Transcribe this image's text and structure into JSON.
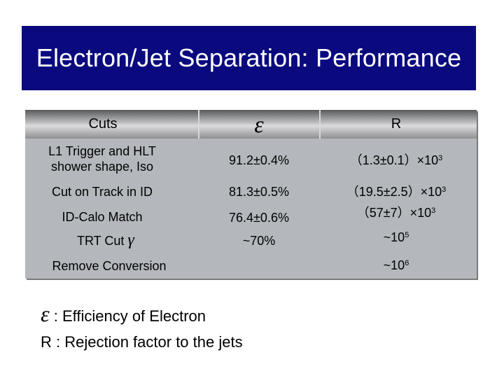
{
  "title": "Electron/Jet Separation: Performance",
  "table": {
    "headers": {
      "cuts": "Cuts",
      "efficiency_symbol": "ε",
      "rejection": "R"
    },
    "rows": [
      {
        "cut": "L1 Trigger and HLT shower shape, Iso",
        "efficiency": "91.2±0.4%",
        "rejection_base": "（1.3±0.1）×10",
        "rejection_exp": "3"
      },
      {
        "cut": "Cut on Track in ID",
        "efficiency": "81.3±0.5%",
        "rejection_base": "（19.5±2.5）×10",
        "rejection_exp": "3"
      },
      {
        "cut": "ID-Calo Match",
        "efficiency": "76.4±0.6%",
        "rejection_base": "（57±7）×10",
        "rejection_exp": "3"
      },
      {
        "cut": "TRT Cut",
        "cut_symbol": "γ",
        "efficiency": "~70%",
        "rejection_base": "~10",
        "rejection_exp": "5"
      },
      {
        "cut": "Remove Conversion",
        "efficiency": "",
        "rejection_base": "~10",
        "rejection_exp": "6"
      }
    ]
  },
  "notes": {
    "epsilon_symbol": "ε",
    "epsilon_text": ": Efficiency of Electron",
    "r_text": "R : Rejection factor to the jets"
  }
}
